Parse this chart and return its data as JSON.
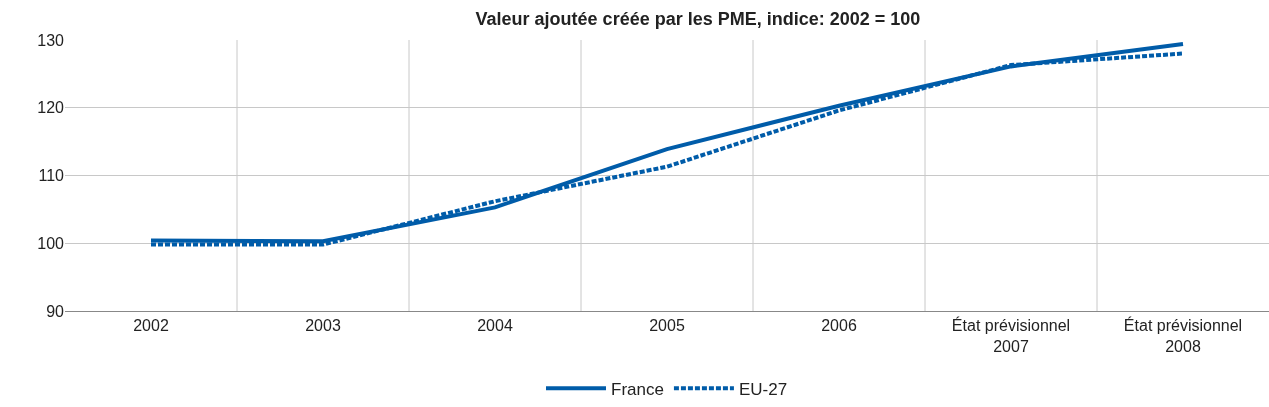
{
  "chart_data": {
    "type": "line",
    "title": "Valeur ajoutée créée par les PME, indice: 2002 = 100",
    "categories": [
      "2002",
      "2003",
      "2004",
      "2005",
      "2006",
      "État prévisionnel\n2007",
      "État prévisionnel\n2008"
    ],
    "series": [
      {
        "name": "France",
        "color": "#005ca9",
        "line_style": "solid",
        "values": [
          100.4,
          100.3,
          105.3,
          113.9,
          120.3,
          126.1,
          129.4
        ]
      },
      {
        "name": "EU-27",
        "color": "#005ca9",
        "line_style": "dotted",
        "values": [
          99.8,
          99.8,
          106.2,
          111.3,
          119.6,
          126.3,
          128.0
        ]
      }
    ],
    "ylim": [
      90,
      130
    ],
    "yticks": [
      90,
      100,
      110,
      120,
      130
    ],
    "grid": true,
    "legend": "bottom",
    "marker": "none"
  }
}
